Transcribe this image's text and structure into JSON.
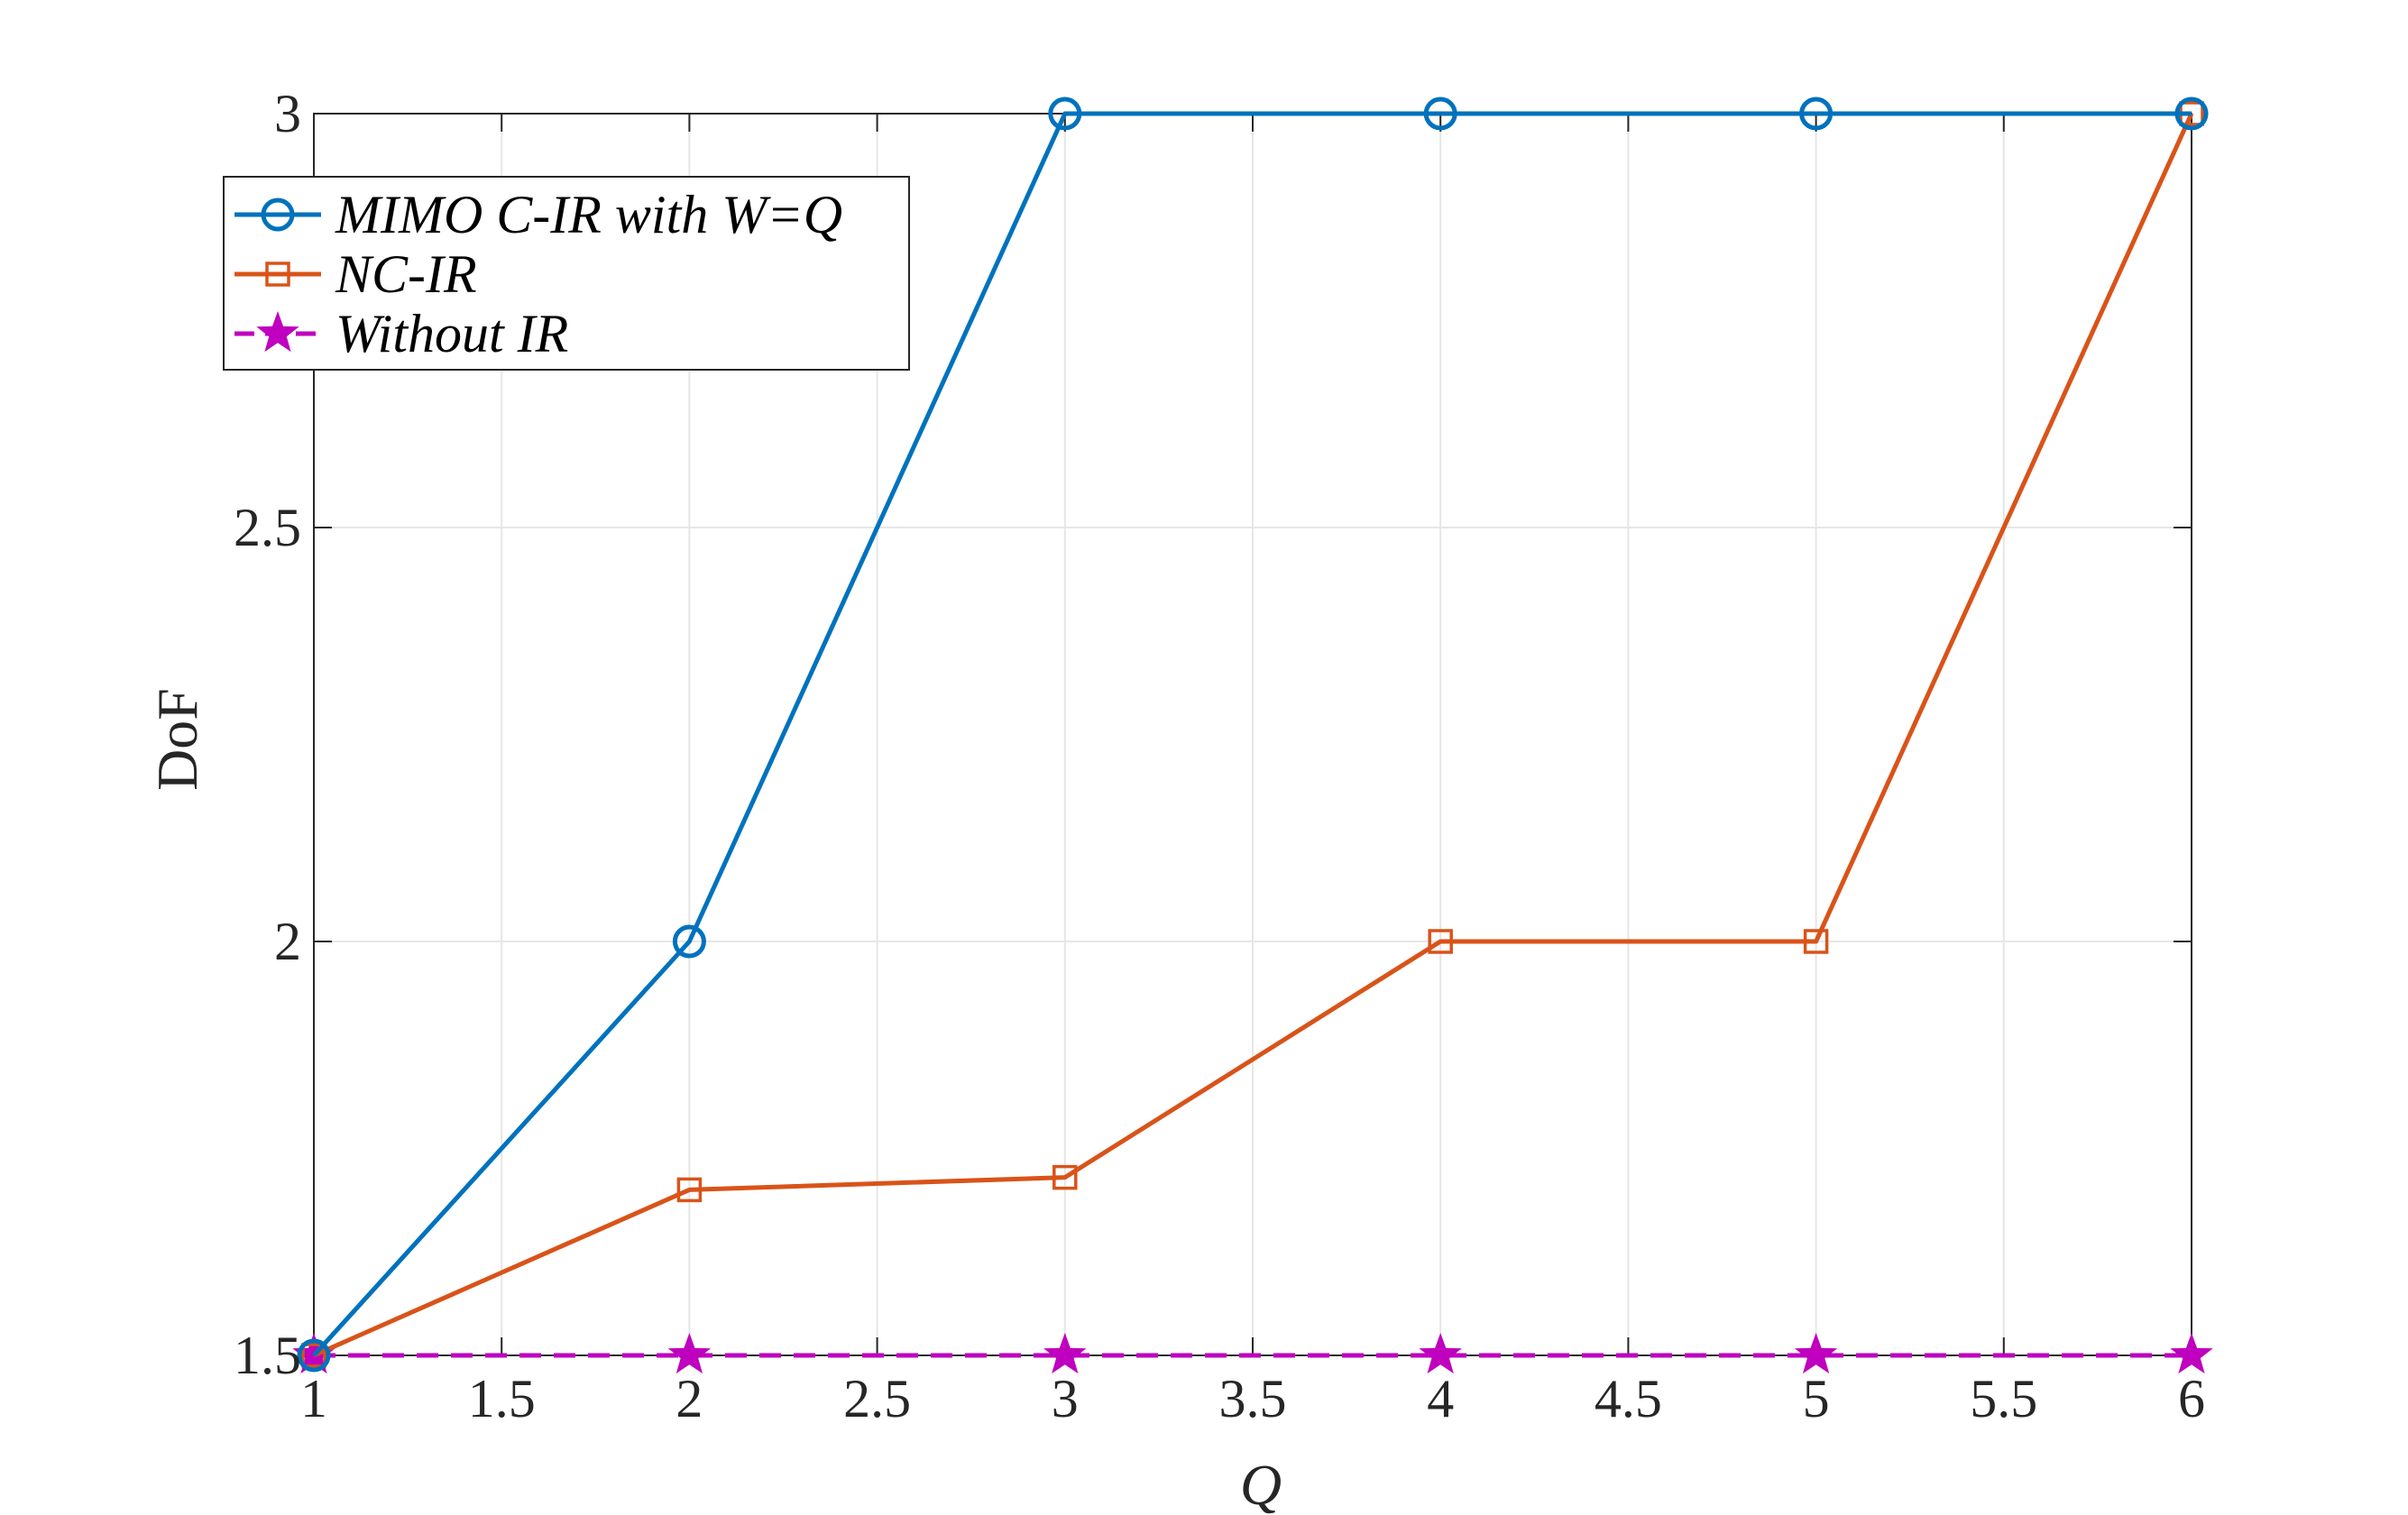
{
  "chart_data": {
    "type": "line",
    "title": "",
    "xlabel": "Q",
    "ylabel": "DoF",
    "xlim": [
      1,
      6
    ],
    "ylim": [
      1.5,
      3
    ],
    "x_ticks": [
      "1",
      "1.5",
      "2",
      "2.5",
      "3",
      "3.5",
      "4",
      "4.5",
      "5",
      "5.5",
      "6"
    ],
    "y_ticks": [
      "1.5",
      "2",
      "2.5",
      "3"
    ],
    "grid": true,
    "legend_position": "top-left",
    "x": [
      1,
      2,
      3,
      4,
      5,
      6
    ],
    "series": [
      {
        "name": "MIMO C-IR with W=Q",
        "values": [
          1.5,
          2,
          3,
          3,
          3,
          3
        ],
        "color": "#0072BD",
        "marker": "circle",
        "line_style": "solid"
      },
      {
        "name": "NC-IR",
        "values": [
          1.5,
          1.7,
          1.715,
          2,
          2,
          3
        ],
        "color": "#D95319",
        "marker": "square",
        "line_style": "solid"
      },
      {
        "name": "Without IR",
        "values": [
          1.5,
          1.5,
          1.5,
          1.5,
          1.5,
          1.5
        ],
        "color": "#BF00BF",
        "marker": "star",
        "line_style": "dashed"
      }
    ]
  }
}
